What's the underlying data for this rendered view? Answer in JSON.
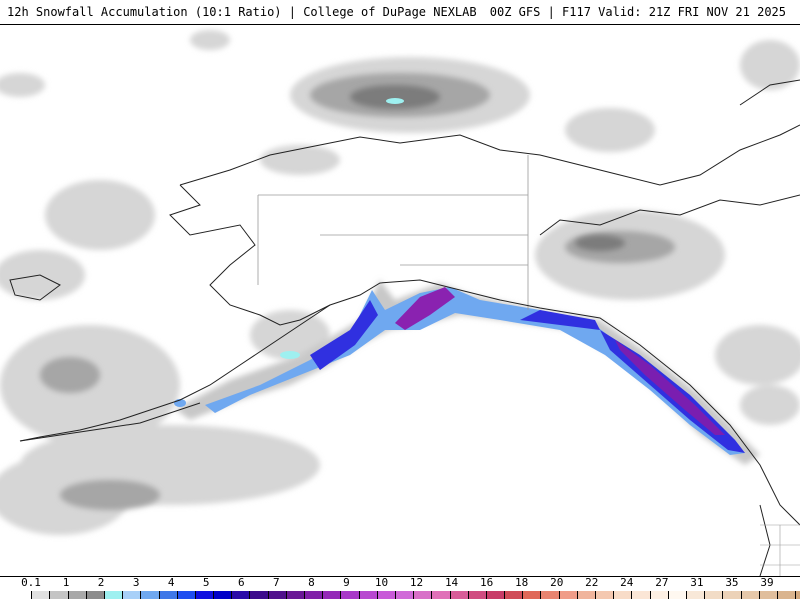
{
  "header": {
    "title": "12h Snowfall Accumulation (10:1 Ratio) | College of DuPage NEXLAB",
    "valid": "00Z GFS | F117 Valid: 21Z FRI NOV 21 2025"
  },
  "legend": {
    "labels": [
      "0.1",
      "1",
      "2",
      "3",
      "4",
      "5",
      "6",
      "7",
      "8",
      "9",
      "10",
      "12",
      "14",
      "16",
      "18",
      "20",
      "22",
      "24",
      "27",
      "31",
      "35",
      "39"
    ],
    "colors": [
      "#ffffff",
      "#e0e0e0",
      "#c4c4c4",
      "#a8a8a8",
      "#8c8c8c",
      "#9ef0f0",
      "#a8d0f8",
      "#6fa8f0",
      "#3f78e8",
      "#1f4ef0",
      "#1010e0",
      "#0000c8",
      "#2a0aa8",
      "#3c0a8c",
      "#50108c",
      "#6a1896",
      "#8020a8",
      "#9428b8",
      "#a838c8",
      "#b848d0",
      "#c85ad8",
      "#d06ad8",
      "#d870c8",
      "#e070b8",
      "#d85c98",
      "#d04c80",
      "#c83c68",
      "#d04c58",
      "#e06858",
      "#e88470",
      "#f09c88",
      "#f0b49c",
      "#f4c8b0",
      "#f8dcc8",
      "#fbe6d6",
      "#fdf0e4",
      "#fff8f0",
      "#f8e8d8",
      "#f2dcc6",
      "#ecd2b8",
      "#e6c8aa",
      "#e0be9c",
      "#dab48e",
      "#d4aa80",
      "#f8eee4"
    ]
  },
  "map": {
    "region": "Alaska / Gulf of Alaska / Pacific Northwest"
  }
}
